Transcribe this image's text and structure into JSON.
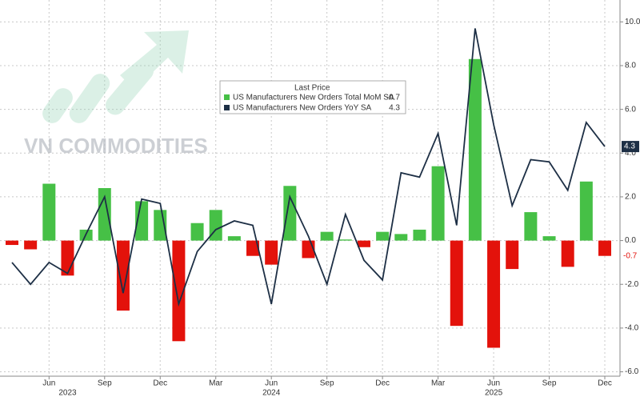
{
  "chart_data": {
    "type": "bar_line",
    "watermark": "VN COMMODITIES",
    "legend_title": "Last Price",
    "x": [
      "2023-04",
      "2023-05",
      "2023-06",
      "2023-07",
      "2023-08",
      "2023-09",
      "2023-10",
      "2023-11",
      "2023-12",
      "2024-01",
      "2024-02",
      "2024-03",
      "2024-04",
      "2024-05",
      "2024-06",
      "2024-07",
      "2024-08",
      "2024-09",
      "2024-10",
      "2024-11",
      "2024-12",
      "2025-01",
      "2025-02",
      "2025-03",
      "2025-04",
      "2025-05",
      "2025-06",
      "2025-07",
      "2025-08",
      "2025-09",
      "2025-10",
      "2025-11",
      "2025-12"
    ],
    "series": [
      {
        "name": "US Manufacturers New Orders Total MoM SA",
        "type": "bar",
        "color": "#46c046",
        "negative_color": "#e3120b",
        "values": [
          -0.2,
          -0.4,
          2.6,
          -1.6,
          0.5,
          2.4,
          -3.2,
          1.8,
          1.4,
          -4.6,
          0.8,
          1.4,
          0.2,
          -0.7,
          -1.1,
          2.5,
          -0.8,
          0.4,
          0.05,
          -0.3,
          0.4,
          0.3,
          0.5,
          3.4,
          -3.9,
          8.3,
          -4.9,
          -1.3,
          1.3,
          0.2,
          -1.2,
          2.7,
          -0.7
        ]
      },
      {
        "name": "US Manufacturers New Orders YoY SA",
        "type": "line",
        "color": "#1d2f45",
        "values": [
          -1.0,
          -2.0,
          -1.0,
          -1.5,
          0.3,
          2.0,
          -2.4,
          1.9,
          1.7,
          -2.9,
          -0.5,
          0.5,
          0.9,
          0.7,
          -2.9,
          2.0,
          0.2,
          -2.0,
          1.2,
          -0.9,
          -1.8,
          3.1,
          2.9,
          4.9,
          0.7,
          9.7,
          5.3,
          1.6,
          3.7,
          3.6,
          2.3,
          5.4,
          4.3
        ]
      }
    ],
    "ylim": [
      -6.2,
      11.0
    ],
    "yticks": [
      {
        "value": 10,
        "label": "10.0"
      },
      {
        "value": 8,
        "label": "8.0"
      },
      {
        "value": 6,
        "label": "6.0"
      },
      {
        "value": 4,
        "label": "4.0"
      },
      {
        "value": 2,
        "label": "2.0"
      },
      {
        "value": 0,
        "label": "0.0"
      },
      {
        "value": -2,
        "label": "-2.0"
      },
      {
        "value": -4,
        "label": "-4.0"
      },
      {
        "value": -6,
        "label": "-6.0"
      }
    ],
    "xticks": [
      {
        "value": "2023-06",
        "label": "Jun"
      },
      {
        "value": "2023-09",
        "label": "Sep"
      },
      {
        "value": "2023-12",
        "label": "Dec"
      },
      {
        "value": "2024-03",
        "label": "Mar"
      },
      {
        "value": "2024-06",
        "label": "Jun"
      },
      {
        "value": "2024-09",
        "label": "Sep"
      },
      {
        "value": "2024-12",
        "label": "Dec"
      },
      {
        "value": "2025-03",
        "label": "Mar"
      },
      {
        "value": "2025-06",
        "label": "Jun"
      },
      {
        "value": "2025-09",
        "label": "Sep"
      },
      {
        "value": "2025-12",
        "label": "Dec"
      }
    ],
    "x_years": [
      {
        "value": "2023-07",
        "label": "2023"
      },
      {
        "value": "2024-06",
        "label": "2024"
      },
      {
        "value": "2025-06",
        "label": "2025"
      }
    ],
    "grid": true
  }
}
